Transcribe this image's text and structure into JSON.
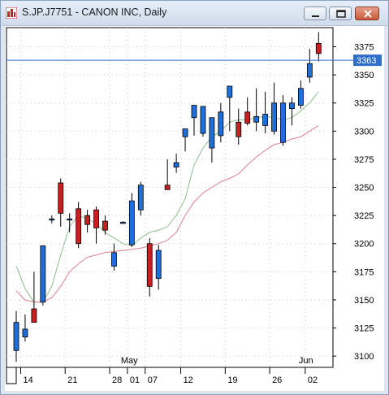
{
  "window": {
    "title": "S.JP.J7751 - CANON INC, Daily"
  },
  "chart_data": {
    "type": "candlestick",
    "title": "S.JP.J7751 - CANON INC, Daily",
    "ylim": [
      3090,
      3392
    ],
    "y_ticks": [
      3100,
      3125,
      3150,
      3175,
      3200,
      3225,
      3250,
      3275,
      3300,
      3325,
      3350,
      3375
    ],
    "y_tick_labels": [
      "3100",
      "3125",
      "3150",
      "3175",
      "3200",
      "3225",
      "3250",
      "3275",
      "3300",
      "3325",
      "3350",
      "3375"
    ],
    "horizontal_line": {
      "value": 3363,
      "label": "3363",
      "color": "#2f6fc9"
    },
    "x_labels": [
      {
        "index": 1,
        "label": "14"
      },
      {
        "index": 6,
        "label": "21"
      },
      {
        "index": 11,
        "label": "28"
      },
      {
        "index": 13,
        "label": "01"
      },
      {
        "index": 15,
        "label": "07"
      },
      {
        "index": 19,
        "label": "12"
      },
      {
        "index": 24,
        "label": "19"
      },
      {
        "index": 29,
        "label": "26"
      },
      {
        "index": 33,
        "label": "02"
      }
    ],
    "month_labels": [
      {
        "index": 13,
        "label": "May"
      },
      {
        "index": 33,
        "label": "Jun"
      }
    ],
    "up_color": "#1f6fd8",
    "down_color": "#c82020",
    "candles": [
      {
        "o": 3105,
        "h": 3140,
        "l": 3095,
        "c": 3130
      },
      {
        "o": 3117,
        "h": 3137,
        "l": 3113,
        "c": 3124
      },
      {
        "o": 3142,
        "h": 3175,
        "l": 3133,
        "c": 3130
      },
      {
        "o": 3148,
        "h": 3197,
        "l": 3145,
        "c": 3198
      },
      {
        "o": 3222,
        "h": 3225,
        "l": 3218,
        "c": 3222
      },
      {
        "o": 3254,
        "h": 3258,
        "l": 3215,
        "c": 3227
      },
      {
        "o": 3222,
        "h": 3227,
        "l": 3210,
        "c": 3222
      },
      {
        "o": 3231,
        "h": 3237,
        "l": 3196,
        "c": 3200
      },
      {
        "o": 3225,
        "h": 3230,
        "l": 3210,
        "c": 3217
      },
      {
        "o": 3230,
        "h": 3233,
        "l": 3200,
        "c": 3214
      },
      {
        "o": 3220,
        "h": 3225,
        "l": 3208,
        "c": 3212
      },
      {
        "o": 3180,
        "h": 3200,
        "l": 3176,
        "c": 3192
      },
      {
        "o": 3219,
        "h": 3220,
        "l": 3218,
        "c": 3219
      },
      {
        "o": 3199,
        "h": 3245,
        "l": 3197,
        "c": 3238
      },
      {
        "o": 3230,
        "h": 3255,
        "l": 3225,
        "c": 3252
      },
      {
        "o": 3200,
        "h": 3205,
        "l": 3153,
        "c": 3162
      },
      {
        "o": 3169,
        "h": 3199,
        "l": 3159,
        "c": 3194
      },
      {
        "o": 3252,
        "h": 3275,
        "l": 3248,
        "c": 3248
      },
      {
        "o": 3268,
        "h": 3280,
        "l": 3263,
        "c": 3272
      },
      {
        "o": 3295,
        "h": 3302,
        "l": 3282,
        "c": 3302
      },
      {
        "o": 3312,
        "h": 3322,
        "l": 3296,
        "c": 3323
      },
      {
        "o": 3298,
        "h": 3322,
        "l": 3295,
        "c": 3322
      },
      {
        "o": 3285,
        "h": 3310,
        "l": 3272,
        "c": 3312
      },
      {
        "o": 3296,
        "h": 3325,
        "l": 3290,
        "c": 3317
      },
      {
        "o": 3330,
        "h": 3340,
        "l": 3300,
        "c": 3340
      },
      {
        "o": 3308,
        "h": 3320,
        "l": 3288,
        "c": 3295
      },
      {
        "o": 3317,
        "h": 3330,
        "l": 3305,
        "c": 3307
      },
      {
        "o": 3308,
        "h": 3338,
        "l": 3300,
        "c": 3313
      },
      {
        "o": 3305,
        "h": 3335,
        "l": 3298,
        "c": 3315
      },
      {
        "o": 3300,
        "h": 3343,
        "l": 3297,
        "c": 3325
      },
      {
        "o": 3290,
        "h": 3332,
        "l": 3287,
        "c": 3325
      },
      {
        "o": 3320,
        "h": 3330,
        "l": 3305,
        "c": 3325
      },
      {
        "o": 3323,
        "h": 3345,
        "l": 3320,
        "c": 3338
      },
      {
        "o": 3348,
        "h": 3373,
        "l": 3343,
        "c": 3360
      },
      {
        "o": 3378,
        "h": 3388,
        "l": 3362,
        "c": 3369
      }
    ],
    "moving_averages": [
      {
        "color": "#8fbf8f",
        "values": [
          3180,
          3160,
          3148,
          3148,
          3162,
          3190,
          3215,
          3225,
          3222,
          3218,
          3210,
          3205,
          3200,
          3198,
          3205,
          3210,
          3212,
          3215,
          3225,
          3240,
          3270,
          3285,
          3295,
          3300,
          3308,
          3310,
          3310,
          3312,
          3313,
          3312,
          3310,
          3312,
          3318,
          3325,
          3335
        ]
      },
      {
        "color": "#e08090",
        "values": [
          3158,
          3150,
          3148,
          3148,
          3152,
          3162,
          3175,
          3182,
          3188,
          3190,
          3192,
          3193,
          3194,
          3195,
          3196,
          3198,
          3200,
          3203,
          3210,
          3225,
          3237,
          3245,
          3250,
          3255,
          3258,
          3262,
          3270,
          3277,
          3283,
          3288,
          3290,
          3293,
          3295,
          3300,
          3305
        ]
      }
    ]
  }
}
